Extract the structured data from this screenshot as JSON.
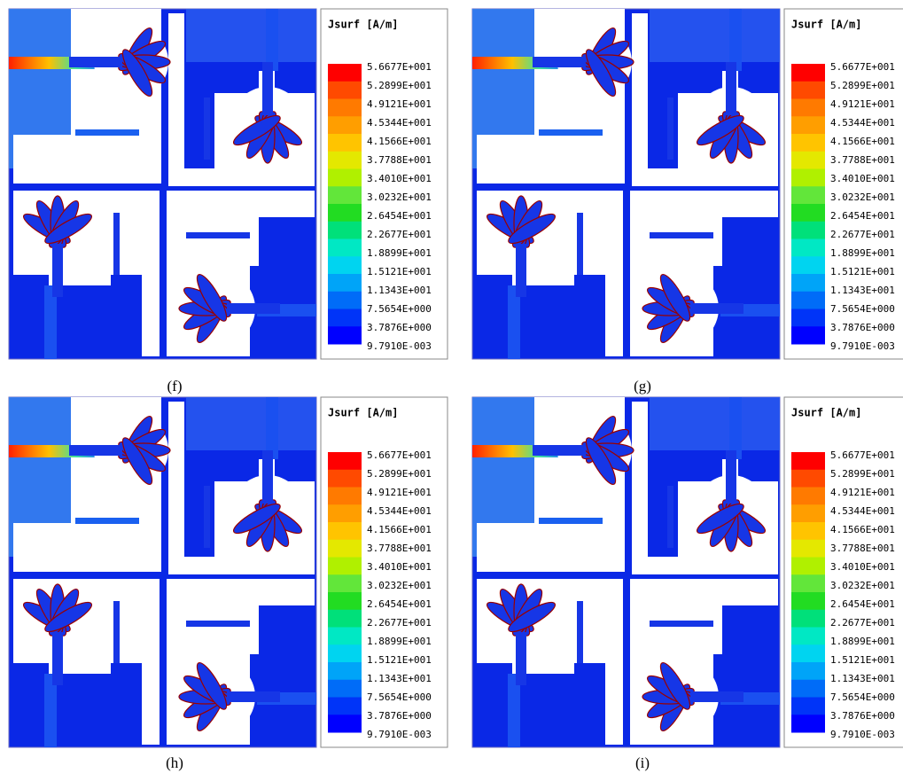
{
  "legend": {
    "title": "Jsurf [A/m]",
    "labels": [
      "5.6677E+001",
      "5.2899E+001",
      "4.9121E+001",
      "4.5344E+001",
      "4.1566E+001",
      "3.7788E+001",
      "3.4010E+001",
      "3.0232E+001",
      "2.6454E+001",
      "2.2677E+001",
      "1.8899E+001",
      "1.5121E+001",
      "1.1343E+001",
      "7.5654E+000",
      "3.7876E+000",
      "9.7910E-003"
    ],
    "colors": [
      "#ff0000",
      "#ff4a00",
      "#ff7a00",
      "#ff9e00",
      "#ffc400",
      "#e4e800",
      "#b0f000",
      "#62e63a",
      "#22dc22",
      "#00e07a",
      "#00e8c4",
      "#00d4f0",
      "#00a4f8",
      "#006cf8",
      "#0034f8",
      "#0000ff"
    ]
  },
  "panels": [
    {
      "caption": "(f)"
    },
    {
      "caption": "(g)"
    },
    {
      "caption": "(h)"
    },
    {
      "caption": "(i)"
    }
  ]
}
